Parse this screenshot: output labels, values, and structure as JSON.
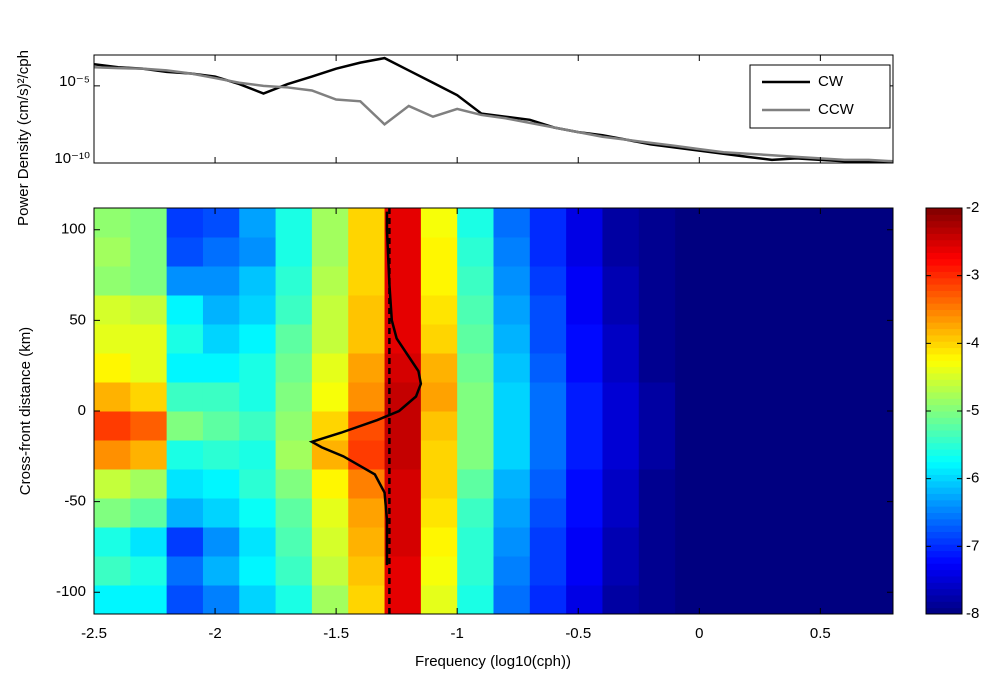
{
  "chart_data": [
    {
      "type": "line",
      "ylabel": "Power Density (cm/s)²/cph",
      "xlim": [
        -2.5,
        0.8
      ],
      "xticks": [
        -2.5,
        -2,
        -1.5,
        -1,
        -0.5,
        0,
        0.5
      ],
      "ylim": [
        1e-10,
        0.001
      ],
      "log_y": true,
      "yticks": [
        {
          "value": 1e-10,
          "label": "10⁻¹⁰"
        },
        {
          "value": 1e-05,
          "label": "10⁻⁵"
        }
      ],
      "legend": "northeast",
      "x": [
        -2.5,
        -2.4,
        -2.3,
        -2.2,
        -2.1,
        -2.0,
        -1.9,
        -1.8,
        -1.7,
        -1.6,
        -1.5,
        -1.4,
        -1.3,
        -1.2,
        -1.1,
        -1.0,
        -0.9,
        -0.8,
        -0.7,
        -0.6,
        -0.5,
        -0.4,
        -0.3,
        -0.2,
        -0.1,
        0.0,
        0.1,
        0.2,
        0.3,
        0.4,
        0.5,
        0.6,
        0.7,
        0.8
      ],
      "series": [
        {
          "name": "CW",
          "color": "#000000",
          "values": [
            0.00025,
            0.00016,
            0.00013,
            8e-05,
            6.3e-05,
            4e-05,
            1.3e-05,
            3.2e-06,
            1.3e-05,
            4e-05,
            0.00013,
            0.00032,
            0.00063,
            0.0001,
            1.6e-05,
            2.5e-06,
            1.6e-07,
            1e-07,
            6.3e-08,
            2e-08,
            1e-08,
            6.3e-09,
            3.2e-09,
            1.6e-09,
            1e-09,
            6.3e-10,
            4e-10,
            2.5e-10,
            1.6e-10,
            2e-10,
            1.6e-10,
            1.3e-10,
            1.3e-10,
            1.3e-10
          ]
        },
        {
          "name": "CCW",
          "color": "#808080",
          "values": [
            0.00016,
            0.00014,
            0.00013,
            0.0001,
            6.3e-05,
            3.2e-05,
            1.6e-05,
            1e-05,
            7.9e-06,
            5e-06,
            1.3e-06,
            1e-06,
            3.2e-08,
            5e-07,
            1e-07,
            3.2e-07,
            1.3e-07,
            7.9e-08,
            4e-08,
            2e-08,
            1e-08,
            5e-09,
            3.2e-09,
            2e-09,
            1.3e-09,
            7.9e-10,
            5e-10,
            4e-10,
            3.2e-10,
            2.5e-10,
            2e-10,
            1.6e-10,
            1.6e-10,
            1.3e-10
          ]
        }
      ]
    },
    {
      "type": "heatmap",
      "xlabel": "Frequency (log10(cph))",
      "ylabel": "Cross-front distance (km)",
      "xlim": [
        -2.5,
        0.8
      ],
      "xticks": [
        -2.5,
        -2,
        -1.5,
        -1,
        -0.5,
        0,
        0.5
      ],
      "ylim": [
        -112,
        112
      ],
      "yticks": [
        -100,
        -50,
        0,
        50,
        100
      ],
      "xbins": [
        -2.5,
        -2.35,
        -2.2,
        -2.05,
        -1.9,
        -1.75,
        -1.6,
        -1.45,
        -1.3,
        -1.15,
        -1.0,
        -0.85,
        -0.7,
        -0.55,
        -0.4,
        -0.25,
        -0.1,
        0.05,
        0.2,
        0.35,
        0.5,
        0.65,
        0.8
      ],
      "ybins": [
        -112,
        -96,
        -80,
        -64,
        -48,
        -32,
        -16,
        0,
        16,
        32,
        48,
        64,
        80,
        96,
        112
      ],
      "colormap": "jet",
      "clim": [
        -8,
        -2
      ],
      "cticks": [
        -8,
        -7,
        -6,
        -5,
        -4,
        -3,
        -2
      ],
      "z": [
        [
          -5.8,
          -5.8,
          -6.8,
          -6.5,
          -6.0,
          -5.6,
          -4.8,
          -4.0,
          -2.6,
          -4.4,
          -5.6,
          -6.6,
          -7.0,
          -7.4,
          -7.8,
          -7.9,
          -8,
          -8,
          -8,
          -8,
          -8,
          -8
        ],
        [
          -5.4,
          -5.6,
          -6.6,
          -6.2,
          -5.8,
          -5.4,
          -4.6,
          -3.9,
          -2.6,
          -4.3,
          -5.5,
          -6.5,
          -6.9,
          -7.3,
          -7.7,
          -7.9,
          -8,
          -8,
          -8,
          -8,
          -8,
          -8
        ],
        [
          -5.6,
          -5.9,
          -6.9,
          -6.4,
          -5.9,
          -5.3,
          -4.5,
          -3.8,
          -2.5,
          -4.2,
          -5.5,
          -6.4,
          -6.9,
          -7.3,
          -7.7,
          -7.9,
          -8,
          -8,
          -8,
          -8,
          -8,
          -8
        ],
        [
          -5.0,
          -5.2,
          -6.2,
          -6.0,
          -5.7,
          -5.2,
          -4.4,
          -3.7,
          -2.5,
          -4.1,
          -5.4,
          -6.3,
          -6.8,
          -7.2,
          -7.6,
          -7.9,
          -8,
          -8,
          -8,
          -8,
          -8,
          -8
        ],
        [
          -4.6,
          -4.8,
          -5.9,
          -5.8,
          -5.5,
          -5.0,
          -4.2,
          -3.5,
          -2.5,
          -4.0,
          -5.2,
          -6.2,
          -6.7,
          -7.2,
          -7.6,
          -7.9,
          -8,
          -8,
          -8,
          -8,
          -8,
          -8
        ],
        [
          -3.6,
          -3.8,
          -5.6,
          -5.5,
          -5.6,
          -4.8,
          -3.8,
          -3.1,
          -2.4,
          -4.0,
          -5.0,
          -6.0,
          -6.6,
          -7.1,
          -7.5,
          -7.8,
          -8,
          -8,
          -8,
          -8,
          -8,
          -8
        ],
        [
          -3.1,
          -3.3,
          -5.0,
          -5.2,
          -5.4,
          -4.9,
          -4.0,
          -3.2,
          -2.4,
          -3.9,
          -5.0,
          -6.0,
          -6.6,
          -7.1,
          -7.5,
          -7.8,
          -8,
          -8,
          -8,
          -8,
          -8,
          -8
        ],
        [
          -3.8,
          -4.0,
          -5.4,
          -5.4,
          -5.6,
          -5.0,
          -4.3,
          -3.6,
          -2.4,
          -3.7,
          -5.0,
          -6.0,
          -6.6,
          -7.1,
          -7.5,
          -7.8,
          -8,
          -8,
          -8,
          -8,
          -8,
          -8
        ],
        [
          -4.2,
          -4.4,
          -5.8,
          -5.8,
          -5.6,
          -5.1,
          -4.4,
          -3.7,
          -2.5,
          -3.8,
          -5.1,
          -6.1,
          -6.7,
          -7.2,
          -7.6,
          -7.9,
          -8,
          -8,
          -8,
          -8,
          -8,
          -8
        ],
        [
          -4.4,
          -4.4,
          -5.6,
          -6.0,
          -5.8,
          -5.2,
          -4.6,
          -3.9,
          -2.6,
          -4.0,
          -5.2,
          -6.2,
          -6.8,
          -7.2,
          -7.6,
          -7.9,
          -8,
          -8,
          -8,
          -8,
          -8,
          -8
        ],
        [
          -4.5,
          -4.6,
          -5.8,
          -6.2,
          -6.0,
          -5.4,
          -4.6,
          -3.9,
          -2.6,
          -4.1,
          -5.3,
          -6.3,
          -6.8,
          -7.3,
          -7.7,
          -7.9,
          -8,
          -8,
          -8,
          -8,
          -8,
          -8
        ],
        [
          -4.9,
          -5.0,
          -6.4,
          -6.4,
          -6.1,
          -5.5,
          -4.7,
          -4.0,
          -2.6,
          -4.2,
          -5.4,
          -6.4,
          -6.9,
          -7.3,
          -7.7,
          -7.9,
          -8,
          -8,
          -8,
          -8,
          -8,
          -8
        ],
        [
          -4.8,
          -5.0,
          -6.8,
          -6.6,
          -6.4,
          -5.6,
          -4.8,
          -4.0,
          -2.6,
          -4.2,
          -5.5,
          -6.5,
          -7.0,
          -7.4,
          -7.8,
          -7.9,
          -8,
          -8,
          -8,
          -8,
          -8,
          -8
        ],
        [
          -4.9,
          -5.0,
          -6.9,
          -6.8,
          -6.3,
          -5.6,
          -4.8,
          -4.0,
          -2.6,
          -4.3,
          -5.6,
          -6.6,
          -7.0,
          -7.4,
          -7.8,
          -7.9,
          -8,
          -8,
          -8,
          -8,
          -8,
          -8
        ]
      ],
      "profile": {
        "color": "#000000",
        "x": [
          -1.29,
          -1.29,
          -1.29,
          -1.3,
          -1.34,
          -1.47,
          -1.56,
          -1.6,
          -1.48,
          -1.33,
          -1.24,
          -1.17,
          -1.15,
          -1.16,
          -1.2,
          -1.25,
          -1.27,
          -1.28,
          -1.29,
          -1.29
        ],
        "y": [
          -85,
          -80,
          -60,
          -45,
          -35,
          -25,
          -20,
          -17,
          -12,
          -5,
          0,
          8,
          15,
          22,
          30,
          40,
          50,
          70,
          100,
          110
        ]
      },
      "dashed_x": -1.28
    }
  ]
}
